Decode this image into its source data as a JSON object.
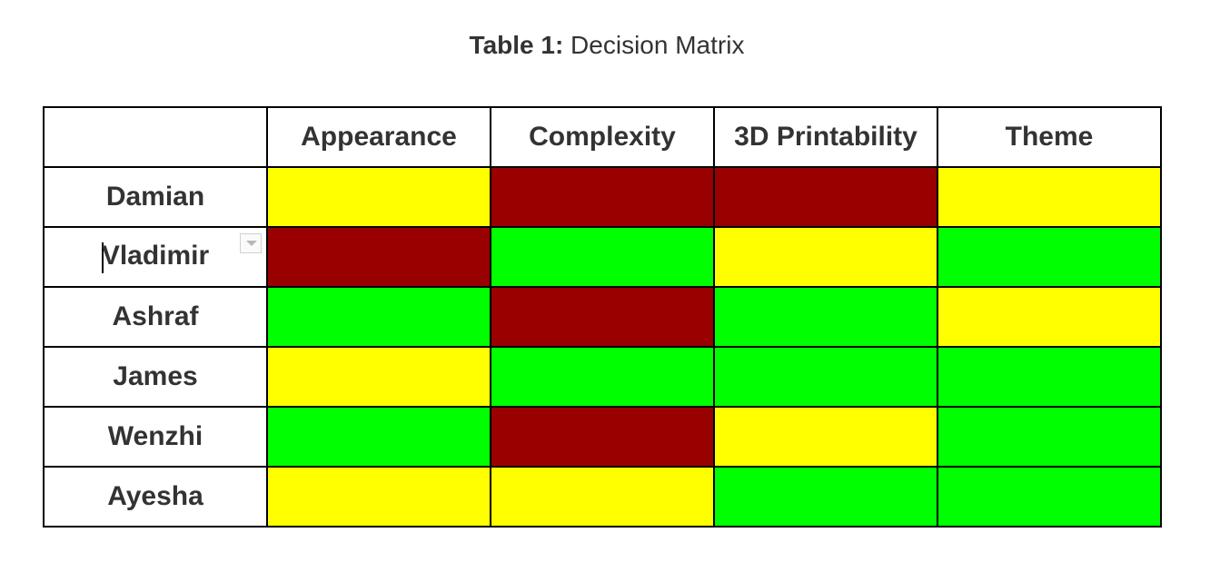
{
  "caption": {
    "label": "Table 1:",
    "text": " Decision Matrix"
  },
  "table": {
    "columns": [
      "",
      "Appearance",
      "Complexity",
      "3D Printability",
      "Theme"
    ],
    "status_colors": {
      "green": "#00ff00",
      "yellow": "#ffff00",
      "red": "#990000"
    },
    "rows": [
      {
        "name": "Damian",
        "ratings": [
          "yellow",
          "red",
          "red",
          "yellow"
        ]
      },
      {
        "name": "Vladimir",
        "ratings": [
          "red",
          "green",
          "yellow",
          "green"
        ]
      },
      {
        "name": "Ashraf",
        "ratings": [
          "green",
          "red",
          "green",
          "yellow"
        ]
      },
      {
        "name": "James",
        "ratings": [
          "yellow",
          "green",
          "green",
          "green"
        ]
      },
      {
        "name": "Wenzhi",
        "ratings": [
          "green",
          "red",
          "yellow",
          "green"
        ]
      },
      {
        "name": "Ayesha",
        "ratings": [
          "yellow",
          "yellow",
          "green",
          "green"
        ]
      }
    ]
  }
}
